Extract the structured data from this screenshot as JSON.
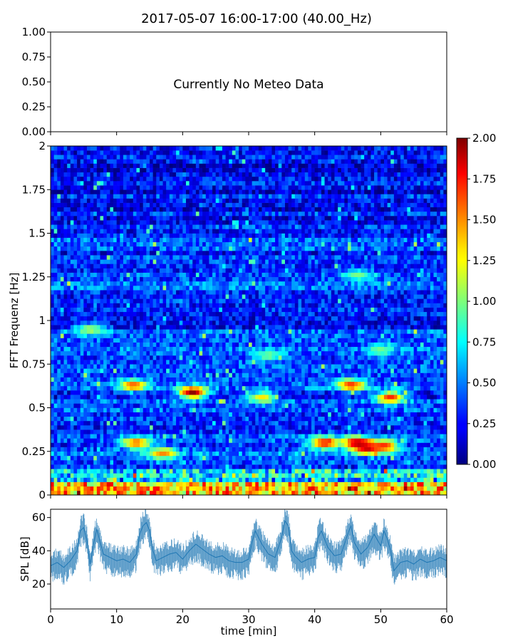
{
  "title": "2017-05-07 16:00-17:00 (40.00_Hz)",
  "chart_data": [
    {
      "type": "line",
      "panel": "meteo",
      "message": "Currently No Meteo Data",
      "ylim": [
        0,
        1
      ],
      "xlim": [
        0,
        60
      ],
      "ytick_labels": [
        "0.00",
        "0.25",
        "0.50",
        "0.75",
        "1.00"
      ],
      "x_tick_labels_visible": false,
      "series": []
    },
    {
      "type": "heatmap",
      "panel": "spectrogram",
      "ylabel": "FFT Frequenz [Hz]",
      "xlim": [
        0,
        60
      ],
      "ylim": [
        0,
        2
      ],
      "ytick_labels": [
        "0",
        "0.25",
        "0.5",
        "0.75",
        "1",
        "1.25",
        "1.5",
        "1.75",
        "2"
      ],
      "colormap": "jet",
      "colorbar": {
        "range": [
          0,
          2
        ],
        "tick_labels": [
          "0.00",
          "0.25",
          "0.50",
          "0.75",
          "1.00",
          "1.25",
          "1.50",
          "1.75",
          "2.00"
        ]
      },
      "time_bins": 120,
      "frequency_bins": 80,
      "description_of_features": {
        "low_band_hz": [
          0,
          0.08
        ],
        "low_band_level": 1.8,
        "background_level": 0.35,
        "hotspots": [
          {
            "t": 21.5,
            "f": 0.59,
            "v": 2.0
          },
          {
            "t": 12.5,
            "f": 0.63,
            "v": 1.6
          },
          {
            "t": 45.5,
            "f": 0.63,
            "v": 1.7
          },
          {
            "t": 51.5,
            "f": 0.56,
            "v": 1.7
          },
          {
            "t": 41.5,
            "f": 0.3,
            "v": 1.8
          },
          {
            "t": 46.5,
            "f": 0.3,
            "v": 2.0
          },
          {
            "t": 48.0,
            "f": 0.27,
            "v": 1.9
          },
          {
            "t": 50.5,
            "f": 0.28,
            "v": 1.7
          },
          {
            "t": 13.0,
            "f": 0.3,
            "v": 1.6
          },
          {
            "t": 17.0,
            "f": 0.24,
            "v": 1.5
          },
          {
            "t": 32.0,
            "f": 0.56,
            "v": 1.3
          },
          {
            "t": 6.0,
            "f": 0.95,
            "v": 1.1
          },
          {
            "t": 46.5,
            "f": 1.26,
            "v": 1.0
          },
          {
            "t": 33.0,
            "f": 0.8,
            "v": 1.0
          },
          {
            "t": 50.0,
            "f": 0.83,
            "v": 1.0
          }
        ]
      }
    },
    {
      "type": "line",
      "panel": "spl",
      "ylabel": "SPL [dB]",
      "xlabel": "time [min]",
      "xlim": [
        0,
        60
      ],
      "ylim": [
        5,
        65
      ],
      "xtick_labels": [
        "0",
        "10",
        "20",
        "30",
        "40",
        "50",
        "60"
      ],
      "ytick_labels": [
        "20",
        "40",
        "60"
      ],
      "color": "#1f77b4",
      "series": [
        {
          "x": [
            0,
            1,
            2,
            3,
            4,
            4.5,
            5,
            5.5,
            6,
            6.5,
            7,
            7.5,
            8,
            9,
            10,
            11,
            12,
            13,
            13.5,
            14,
            14.5,
            15,
            15.5,
            16,
            17,
            18,
            19,
            20,
            21,
            22,
            23,
            24,
            25,
            26,
            27,
            28,
            29,
            30,
            30.5,
            31,
            32,
            33,
            34,
            35,
            35.5,
            36,
            36.5,
            37,
            38,
            39,
            40,
            40.5,
            41,
            42,
            43,
            44,
            45,
            45.5,
            46,
            47,
            48,
            49,
            50,
            50.5,
            51,
            51.5,
            52,
            53,
            54,
            55,
            56,
            57,
            58,
            59,
            60
          ],
          "values": [
            31,
            33,
            30,
            34,
            40,
            52,
            54,
            46,
            32,
            44,
            53,
            45,
            38,
            36,
            34,
            35,
            33,
            38,
            50,
            55,
            57,
            52,
            40,
            34,
            36,
            38,
            39,
            35,
            40,
            44,
            41,
            38,
            36,
            37,
            34,
            33,
            33,
            35,
            45,
            52,
            44,
            38,
            36,
            48,
            58,
            55,
            40,
            37,
            33,
            35,
            36,
            48,
            52,
            42,
            37,
            38,
            50,
            55,
            45,
            38,
            42,
            50,
            43,
            52,
            47,
            40,
            28,
            33,
            34,
            32,
            35,
            33,
            34,
            36,
            34
          ]
        }
      ]
    }
  ]
}
